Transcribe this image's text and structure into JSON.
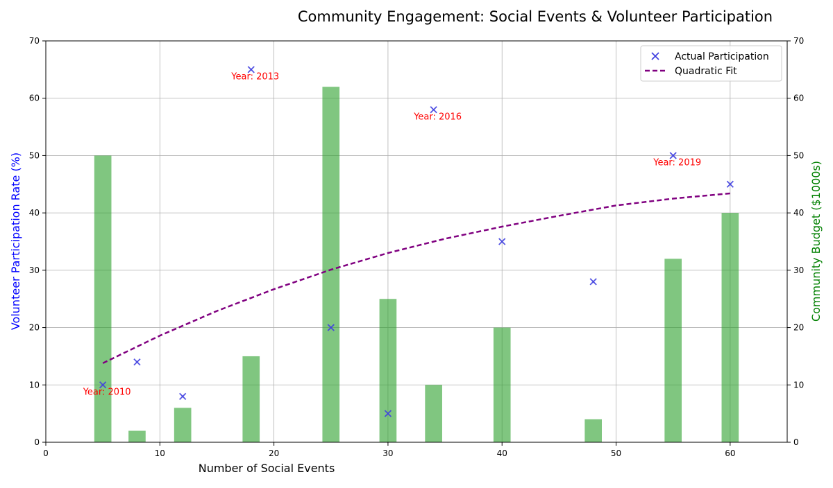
{
  "chart_data": {
    "type": "scatter",
    "title": "Community Engagement: Social Events & Volunteer Participation",
    "xlabel": "Number of Social Events",
    "ylabel_left": "Volunteer Participation Rate (%)",
    "ylabel_right": "Community Budget ($1000s)",
    "xlim": [
      0,
      65
    ],
    "ylim": [
      0,
      70
    ],
    "ylim_right": [
      0,
      70
    ],
    "x_ticks": [
      0,
      10,
      20,
      30,
      40,
      50,
      60
    ],
    "y_ticks": [
      0,
      10,
      20,
      30,
      40,
      50,
      60,
      70
    ],
    "grid": true,
    "legend_position": "top-right",
    "series": [
      {
        "name": "Actual Participation",
        "kind": "scatter",
        "marker": "x",
        "color": "#4040e0",
        "x": [
          5,
          8,
          12,
          18,
          25,
          30,
          34,
          40,
          48,
          55,
          60
        ],
        "y": [
          10,
          14,
          8,
          65,
          20,
          5,
          58,
          35,
          28,
          50,
          45
        ]
      },
      {
        "name": "Quadratic Fit",
        "kind": "line",
        "style": "dashed",
        "color": "#800080",
        "x": [
          5,
          10,
          15,
          20,
          25,
          30,
          35,
          40,
          45,
          50,
          55,
          60
        ],
        "y": [
          13.8,
          18.6,
          22.9,
          26.7,
          30.1,
          33.0,
          35.5,
          37.6,
          39.5,
          41.3,
          42.5,
          43.4
        ]
      },
      {
        "name": "Community Budget",
        "kind": "bar",
        "axis": "right",
        "color": "#2ca02c",
        "x": [
          5,
          8,
          12,
          18,
          25,
          30,
          34,
          40,
          48,
          55,
          60
        ],
        "values": [
          50,
          2,
          6,
          15,
          62,
          25,
          10,
          20,
          4,
          32,
          40
        ]
      }
    ],
    "annotations": [
      {
        "text": "Year: 2010",
        "x": 5,
        "y": 10
      },
      {
        "text": "Year: 2013",
        "x": 18,
        "y": 65
      },
      {
        "text": "Year: 2016",
        "x": 34,
        "y": 58
      },
      {
        "text": "Year: 2019",
        "x": 55,
        "y": 50
      }
    ],
    "annotation_color": "#ff0000"
  }
}
